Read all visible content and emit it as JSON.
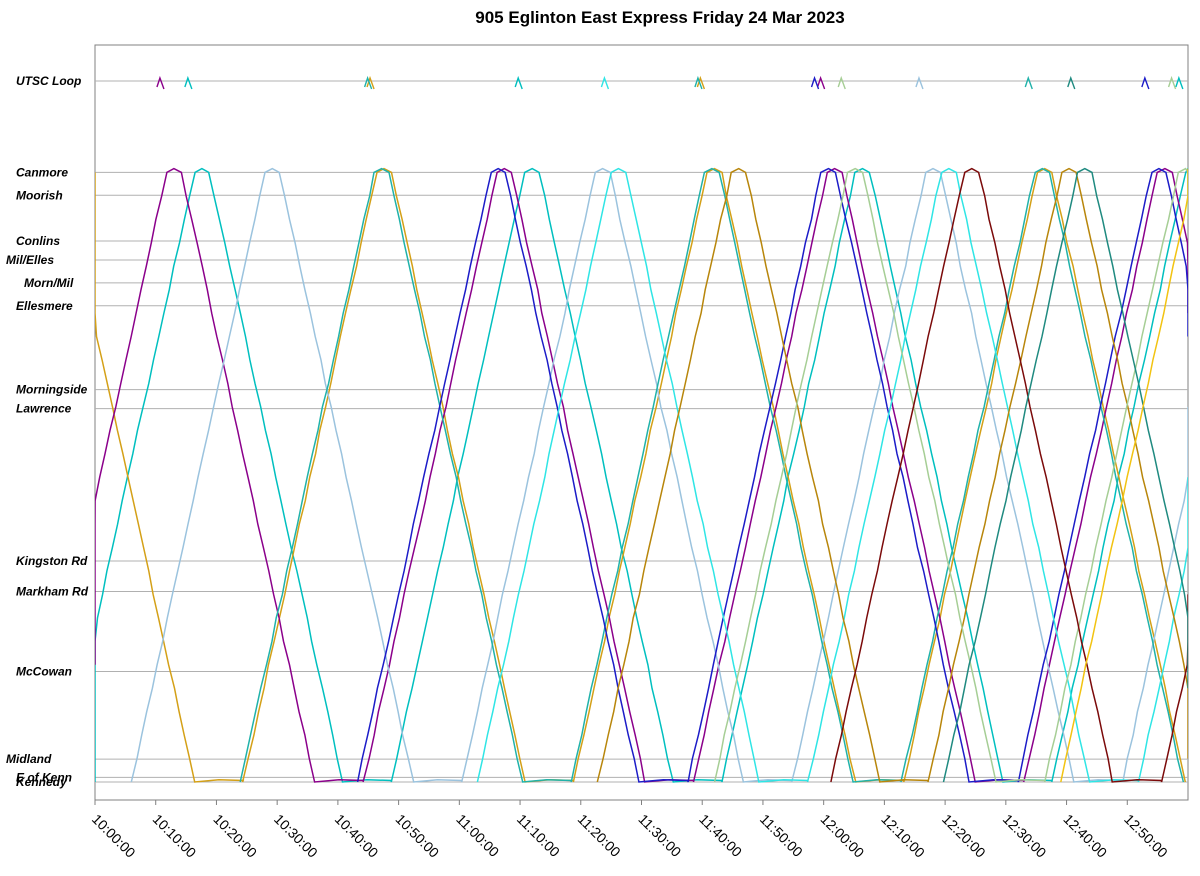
{
  "chart_data": {
    "type": "line",
    "title": "905 Eglinton East Express Friday 24 Mar 2023",
    "xlabel": "",
    "ylabel": "",
    "x_ticks": [
      "10:00:00",
      "10:10:00",
      "10:20:00",
      "10:30:00",
      "10:40:00",
      "10:50:00",
      "11:00:00",
      "11:10:00",
      "11:20:00",
      "11:30:00",
      "11:40:00",
      "11:50:00",
      "12:00:00",
      "12:10:00",
      "12:20:00",
      "12:30:00",
      "12:40:00",
      "12:50:00"
    ],
    "x_range": [
      "10:00:00",
      "13:00:00"
    ],
    "stops": [
      {
        "name": "UTSC Loop",
        "pos": 9.2
      },
      {
        "name": "Canmore",
        "pos": 8.0
      },
      {
        "name": "Moorish",
        "pos": 7.7
      },
      {
        "name": "Conlins",
        "pos": 7.1
      },
      {
        "name": "Mil/Elles",
        "pos": 6.85
      },
      {
        "name": "Morn/Mil",
        "pos": 6.55
      },
      {
        "name": "Ellesmere",
        "pos": 6.25
      },
      {
        "name": "Morningside",
        "pos": 5.15
      },
      {
        "name": "Lawrence",
        "pos": 4.9
      },
      {
        "name": "Kingston Rd",
        "pos": 2.9
      },
      {
        "name": "Markham Rd",
        "pos": 2.5
      },
      {
        "name": "McCowan",
        "pos": 1.45
      },
      {
        "name": "Midland",
        "pos": 0.3
      },
      {
        "name": "E of Kenn",
        "pos": 0.06
      },
      {
        "name": "Kennedy",
        "pos": 0.0
      }
    ],
    "y_range": [
      0,
      9.6
    ],
    "grid": true,
    "legend": "none",
    "trip_duration_min": 22,
    "layover_min": 8,
    "vehicles": [
      {
        "color": "#00BFBF",
        "start": 9.0
      },
      {
        "color": "#D4A017",
        "start": 9.5
      },
      {
        "color": "#8B008B",
        "start": 9.83
      },
      {
        "color": "#9BC3DE",
        "start": 10.1
      },
      {
        "color": "#20B2AA",
        "start": 10.4
      },
      {
        "color": "#1C1CC8",
        "start": 10.72
      },
      {
        "color": "#2FE5E5",
        "start": 11.05
      },
      {
        "color": "#B8860B",
        "start": 11.38
      },
      {
        "color": "#A6CE95",
        "start": 11.7
      },
      {
        "color": "#7B0A0A",
        "start": 12.02
      },
      {
        "color": "#1F8A80",
        "start": 12.33
      },
      {
        "color": "#F2C311",
        "start": 12.65
      }
    ]
  }
}
